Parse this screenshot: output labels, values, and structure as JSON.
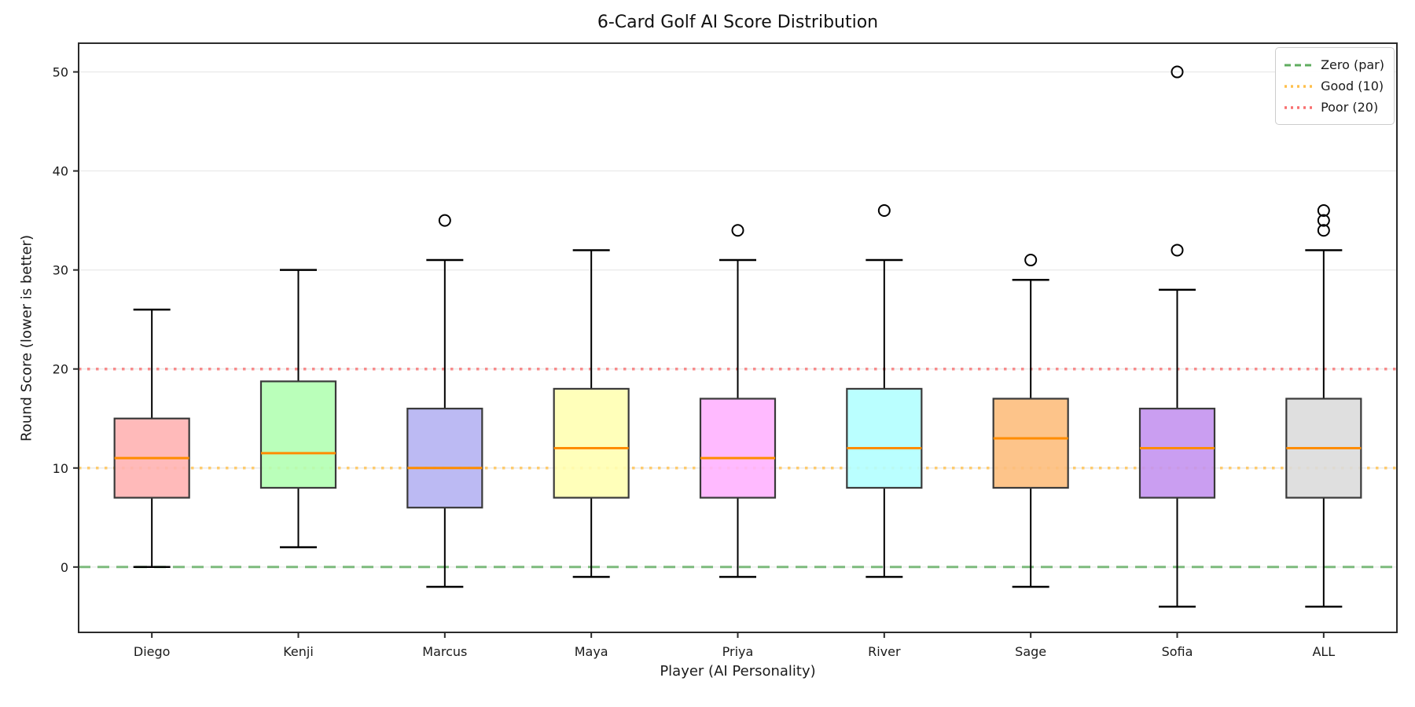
{
  "chart_data": {
    "type": "box",
    "title": "6-Card Golf AI Score Distribution",
    "xlabel": "Player (AI Personality)",
    "ylabel": "Round Score (lower is better)",
    "categories": [
      "Diego",
      "Kenji",
      "Marcus",
      "Maya",
      "Priya",
      "River",
      "Sage",
      "Sofia",
      "ALL"
    ],
    "yticks": [
      0,
      10,
      20,
      30,
      40,
      50
    ],
    "ylim": [
      -6.6,
      52.9
    ],
    "grid": true,
    "legend_position": "upper right",
    "boxes": [
      {
        "player": "Diego",
        "whisker_low": 0,
        "q1": 7,
        "median": 11,
        "q3": 15,
        "whisker_high": 26,
        "outliers": [],
        "fill": "#ffb3b3"
      },
      {
        "player": "Kenji",
        "whisker_low": 2,
        "q1": 8,
        "median": 11.5,
        "q3": 18.75,
        "whisker_high": 30,
        "outliers": [],
        "fill": "#b3ffb3"
      },
      {
        "player": "Marcus",
        "whisker_low": -2,
        "q1": 6,
        "median": 10,
        "q3": 16,
        "whisker_high": 31,
        "outliers": [
          35
        ],
        "fill": "#b5b3f2"
      },
      {
        "player": "Maya",
        "whisker_low": -1,
        "q1": 7,
        "median": 12,
        "q3": 18,
        "whisker_high": 32,
        "outliers": [],
        "fill": "#ffffb3"
      },
      {
        "player": "Priya",
        "whisker_low": -1,
        "q1": 7,
        "median": 11,
        "q3": 17,
        "whisker_high": 31,
        "outliers": [
          34
        ],
        "fill": "#ffb3ff"
      },
      {
        "player": "River",
        "whisker_low": -1,
        "q1": 8,
        "median": 12,
        "q3": 18,
        "whisker_high": 31,
        "outliers": [
          36
        ],
        "fill": "#b3ffff"
      },
      {
        "player": "Sage",
        "whisker_low": -2,
        "q1": 8,
        "median": 13,
        "q3": 17,
        "whisker_high": 29,
        "outliers": [
          31
        ],
        "fill": "#fdbe7d"
      },
      {
        "player": "Sofia",
        "whisker_low": -4,
        "q1": 7,
        "median": 12,
        "q3": 16,
        "whisker_high": 28,
        "outliers": [
          32,
          50
        ],
        "fill": "#c494f0"
      },
      {
        "player": "ALL",
        "whisker_low": -4,
        "q1": 7,
        "median": 12,
        "q3": 17,
        "whisker_high": 32,
        "outliers": [
          34,
          35,
          36
        ],
        "fill": "#dcdcdc"
      }
    ],
    "reference_lines": [
      {
        "label": "Zero (par)",
        "value": 0,
        "color": "#5fad5f",
        "style": "dashed"
      },
      {
        "label": "Good (10)",
        "value": 10,
        "color": "#ffc04d",
        "style": "dotted"
      },
      {
        "label": "Poor (20)",
        "value": 20,
        "color": "#f87070",
        "style": "dotted"
      }
    ],
    "styles": {
      "median_color": "#ff8c00",
      "box_edge": "#3a3a3a",
      "whisker_color": "#000000",
      "grid_color": "#ebebeb",
      "spine_color": "#2b2b2b"
    }
  }
}
